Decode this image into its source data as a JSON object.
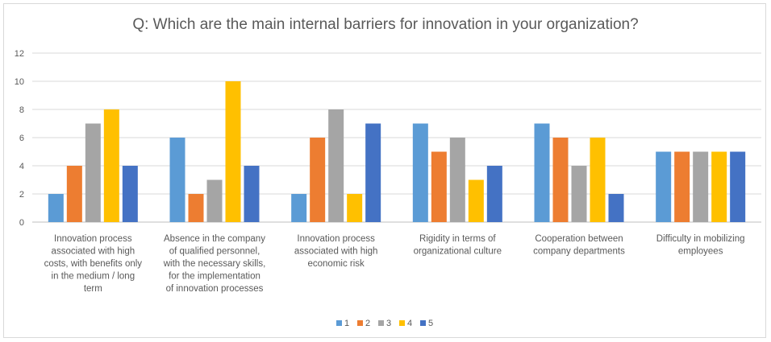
{
  "chart_data": {
    "type": "bar",
    "title": "Q: Which are the main internal barriers for innovation in your organization?",
    "xlabel": "",
    "ylabel": "",
    "ylim": [
      0,
      12
    ],
    "yticks": [
      0,
      2,
      4,
      6,
      8,
      10,
      12
    ],
    "grid": true,
    "legend_position": "bottom",
    "categories": [
      [
        "Innovation process",
        "associated with high",
        "costs, with benefits only",
        "in the medium / long",
        "term"
      ],
      [
        "Absence in the company",
        "of qualified personnel,",
        "with the necessary skills,",
        "for the implementation",
        "of innovation processes"
      ],
      [
        "Innovation process",
        "associated with high",
        "economic risk"
      ],
      [
        "Rigidity in terms of",
        "organizational culture"
      ],
      [
        "Cooperation between",
        "company departments"
      ],
      [
        "Difficulty in mobilizing",
        "employees"
      ]
    ],
    "series": [
      {
        "name": "1",
        "color": "#5b9bd5",
        "values": [
          2,
          6,
          2,
          7,
          7,
          5
        ]
      },
      {
        "name": "2",
        "color": "#ed7d31",
        "values": [
          4,
          2,
          6,
          5,
          6,
          5
        ]
      },
      {
        "name": "3",
        "color": "#a5a5a5",
        "values": [
          7,
          3,
          8,
          6,
          4,
          5
        ]
      },
      {
        "name": "4",
        "color": "#ffc000",
        "values": [
          8,
          10,
          2,
          3,
          6,
          5
        ]
      },
      {
        "name": "5",
        "color": "#4472c4",
        "values": [
          4,
          4,
          7,
          4,
          2,
          5
        ]
      }
    ]
  }
}
